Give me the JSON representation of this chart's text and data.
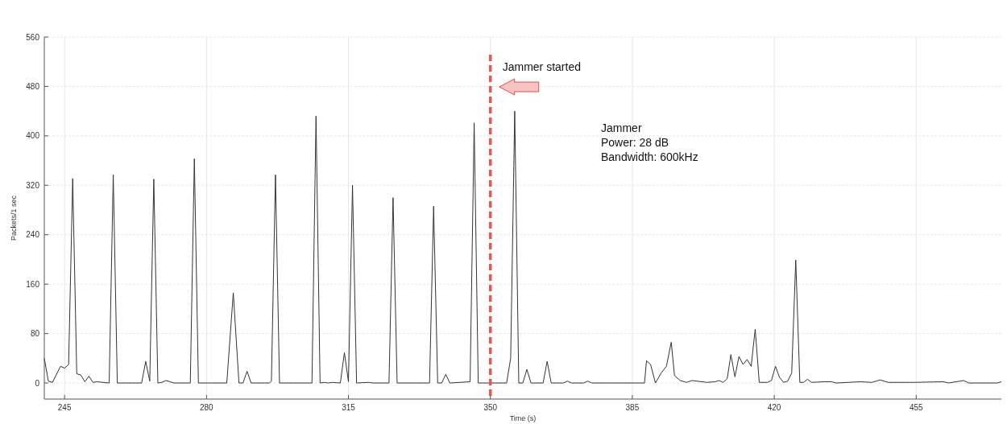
{
  "chart_data": {
    "type": "line",
    "xlabel": "Time (s)",
    "ylabel": "Packets/1 sec",
    "xlim": [
      240,
      476
    ],
    "ylim": [
      -26,
      560
    ],
    "xticks": [
      245,
      280,
      315,
      350,
      385,
      420,
      455
    ],
    "yticks": [
      0,
      80,
      160,
      240,
      320,
      400,
      480,
      560
    ],
    "grid": true,
    "x": [
      240,
      241,
      242,
      244,
      245,
      246,
      247,
      248,
      249,
      250,
      251,
      252,
      253,
      256,
      257,
      258,
      264,
      265,
      266,
      267,
      268,
      269,
      270,
      271,
      272,
      276,
      277,
      278,
      285,
      286.6,
      288,
      289,
      290,
      291,
      295.5,
      296,
      297,
      298,
      305,
      306,
      307,
      308,
      309,
      310,
      311,
      313,
      314,
      315,
      316,
      317,
      320,
      321,
      325,
      326,
      327,
      335,
      336,
      337,
      338,
      339,
      340,
      345,
      346,
      347,
      354,
      355,
      356,
      357,
      358,
      359,
      360,
      363,
      364,
      365,
      368,
      369,
      370,
      373,
      374,
      375,
      388,
      388.5,
      389.5,
      390.7,
      392.1,
      393.4,
      394.6,
      395.4,
      396.8,
      398.4,
      399.7,
      403.4,
      405.4,
      406.4,
      407.4,
      408.4,
      409.3,
      410.3,
      411.3,
      412.3,
      413.3,
      414.3,
      415.3,
      416.3,
      418.3,
      419.3,
      420.3,
      421.3,
      422.3,
      423.3,
      424.3,
      425.3,
      426.3,
      427.2,
      428.2,
      429.2,
      432.2,
      434.2,
      435.2,
      441.2,
      444.1,
      446.1,
      448.1,
      454.4,
      461.7,
      463,
      466.7,
      468,
      475,
      476
    ],
    "series": [
      {
        "color": "#333333",
        "values": [
          40,
          3,
          1,
          27,
          24,
          30,
          331,
          15,
          13,
          2,
          11,
          1,
          2,
          0,
          337,
          0,
          0,
          35,
          3,
          330,
          0,
          1,
          4,
          2,
          0,
          0,
          363,
          0,
          0,
          146,
          0,
          0,
          19,
          0,
          0,
          3,
          337,
          0,
          0,
          0,
          432,
          0,
          1,
          0,
          1,
          0,
          49,
          2,
          320,
          0,
          1,
          0,
          0,
          300,
          0,
          0,
          286,
          0,
          0,
          14,
          0,
          2,
          421,
          0,
          0,
          40,
          440,
          0,
          0,
          22,
          0,
          0,
          35,
          0,
          0,
          3,
          0,
          0,
          3,
          0,
          0,
          36,
          30,
          0,
          16,
          27,
          66,
          12,
          4,
          1,
          4,
          1,
          2,
          4,
          1,
          7,
          46,
          10,
          43,
          30,
          38,
          27,
          87,
          1,
          1,
          4,
          27,
          9,
          1,
          3,
          16,
          199,
          1,
          1,
          6,
          1,
          2,
          2,
          0,
          2,
          1,
          5,
          1,
          1,
          2,
          0,
          4,
          0,
          0,
          2
        ]
      }
    ],
    "ref_lines": [
      {
        "axis": "x",
        "value": 350,
        "label": "Jammer started",
        "color": "#e8574f",
        "line_style": "dashed"
      }
    ],
    "annotations": [
      "Jammer\nPower: 28 dB\nBandwidth: 600kHz"
    ]
  }
}
